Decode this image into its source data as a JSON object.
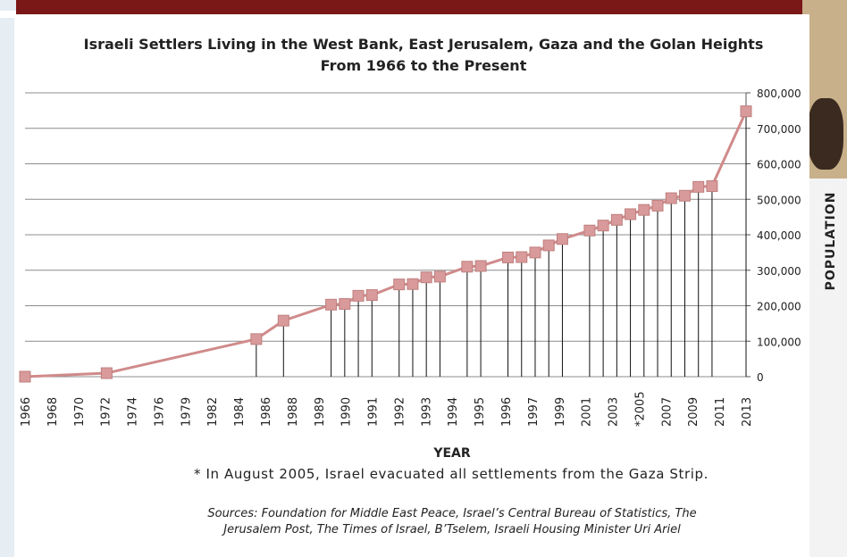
{
  "chart_data": {
    "type": "line",
    "title_line1": "Israeli Settlers Living in the West Bank, East Jerusalem, Gaza and the Golan Heights",
    "title_line2": "From 1966 to the Present",
    "xlabel": "YEAR",
    "ylabel": "POPULATION",
    "ylim": [
      0,
      800000
    ],
    "yticks": [
      "0",
      "100,000",
      "200,000",
      "300,000",
      "400,000",
      "500,000",
      "600,000",
      "700,000",
      "800,000"
    ],
    "xticks": [
      "1966",
      "1968",
      "1970",
      "1972",
      "1974",
      "1976",
      "1979",
      "1982",
      "1984",
      "1986",
      "1988",
      "1989",
      "1990",
      "1991",
      "1992",
      "1993",
      "1994",
      "1995",
      "1996",
      "1997",
      "1999",
      "2001",
      "2003",
      "*2005",
      "2007",
      "2009",
      "2011",
      "2013"
    ],
    "series": [
      {
        "color": "#d08a8a",
        "points": [
          {
            "x": 1966,
            "y": 0
          },
          {
            "x": 1972,
            "y": 10000
          },
          {
            "x": 1983,
            "y": 106000
          },
          {
            "x": 1985,
            "y": 158000
          },
          {
            "x": 1988.5,
            "y": 203000
          },
          {
            "x": 1989.5,
            "y": 205000
          },
          {
            "x": 1990.5,
            "y": 228000
          },
          {
            "x": 1991.5,
            "y": 230000
          },
          {
            "x": 1993.5,
            "y": 260000
          },
          {
            "x": 1994.5,
            "y": 261000
          },
          {
            "x": 1995.5,
            "y": 280000
          },
          {
            "x": 1996.5,
            "y": 282000
          },
          {
            "x": 1998.5,
            "y": 310000
          },
          {
            "x": 1999.5,
            "y": 312000
          },
          {
            "x": 2001.5,
            "y": 336000
          },
          {
            "x": 2002.5,
            "y": 337000
          },
          {
            "x": 2003.5,
            "y": 350000
          },
          {
            "x": 2004.5,
            "y": 370000
          },
          {
            "x": 2005.5,
            "y": 388000
          },
          {
            "x": 2007.5,
            "y": 412000
          },
          {
            "x": 2008.5,
            "y": 426000
          },
          {
            "x": 2009.5,
            "y": 442000
          },
          {
            "x": 2010.5,
            "y": 458000
          },
          {
            "x": 2011.5,
            "y": 470000
          },
          {
            "x": 2012.5,
            "y": 482000
          },
          {
            "x": 2013.5,
            "y": 503000
          },
          {
            "x": 2014.5,
            "y": 510000
          },
          {
            "x": 2015.5,
            "y": 535000
          },
          {
            "x": 2016.5,
            "y": 537000
          },
          {
            "x": 2019,
            "y": 748000
          }
        ]
      }
    ]
  },
  "footnote": "* In August 2005, Israel evacuated all settlements from the Gaza Strip.",
  "sources_line1": "Sources: Foundation for Middle East Peace, Israel’s Central Bureau of Statistics, The",
  "sources_line2": "Jerusalem Post, The Times of Israel, B’Tselem, Israeli Housing Minister Uri Ariel"
}
